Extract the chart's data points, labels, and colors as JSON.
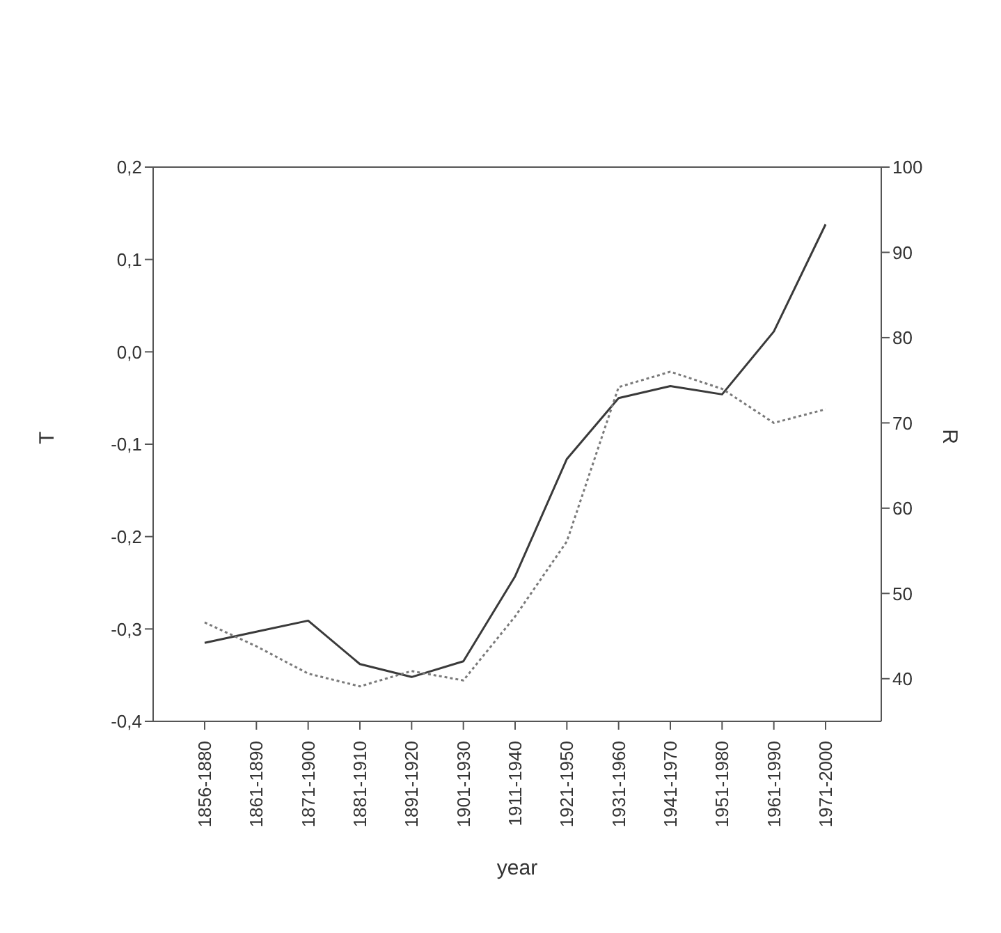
{
  "chart_data": {
    "type": "line",
    "xlabel": "year",
    "ylabel": "T",
    "y2label": "R",
    "categories": [
      "1856-1880",
      "1861-1890",
      "1871-1900",
      "1881-1910",
      "1891-1920",
      "1901-1930",
      "1911-1940",
      "1921-1950",
      "1931-1960",
      "1941-1970",
      "1951-1980",
      "1961-1990",
      "1971-2000"
    ],
    "series": [
      {
        "color": "#3a3a3a",
        "line_style": "solid",
        "values": [
          -0.315,
          -0.303,
          -0.291,
          -0.338,
          -0.352,
          -0.335,
          -0.243,
          -0.116,
          -0.05,
          -0.037,
          -0.046,
          0.022,
          0.138
        ]
      },
      {
        "axis": "y2",
        "color": "#7a7a7a",
        "line_style": "dotted",
        "values": [
          46.6,
          43.8,
          40.6,
          39.1,
          40.9,
          39.8,
          47.3,
          56.1,
          74.2,
          76.0,
          74.0,
          70.0,
          71.6
        ]
      }
    ],
    "ylim": [
      -0.4,
      0.2
    ],
    "yticks": [
      {
        "value": -0.4,
        "label": "-0,4"
      },
      {
        "value": -0.3,
        "label": "-0,3"
      },
      {
        "value": -0.2,
        "label": "-0,2"
      },
      {
        "value": -0.1,
        "label": "-0,1"
      },
      {
        "value": 0,
        "label": "0,0"
      },
      {
        "value": 0.1,
        "label": "0,1"
      },
      {
        "value": 0.2,
        "label": "0,2"
      }
    ],
    "y2lim": [
      35,
      100
    ],
    "y2ticks": [
      40,
      50,
      60,
      70,
      80,
      90,
      100
    ],
    "grid": false,
    "marker": "none"
  }
}
